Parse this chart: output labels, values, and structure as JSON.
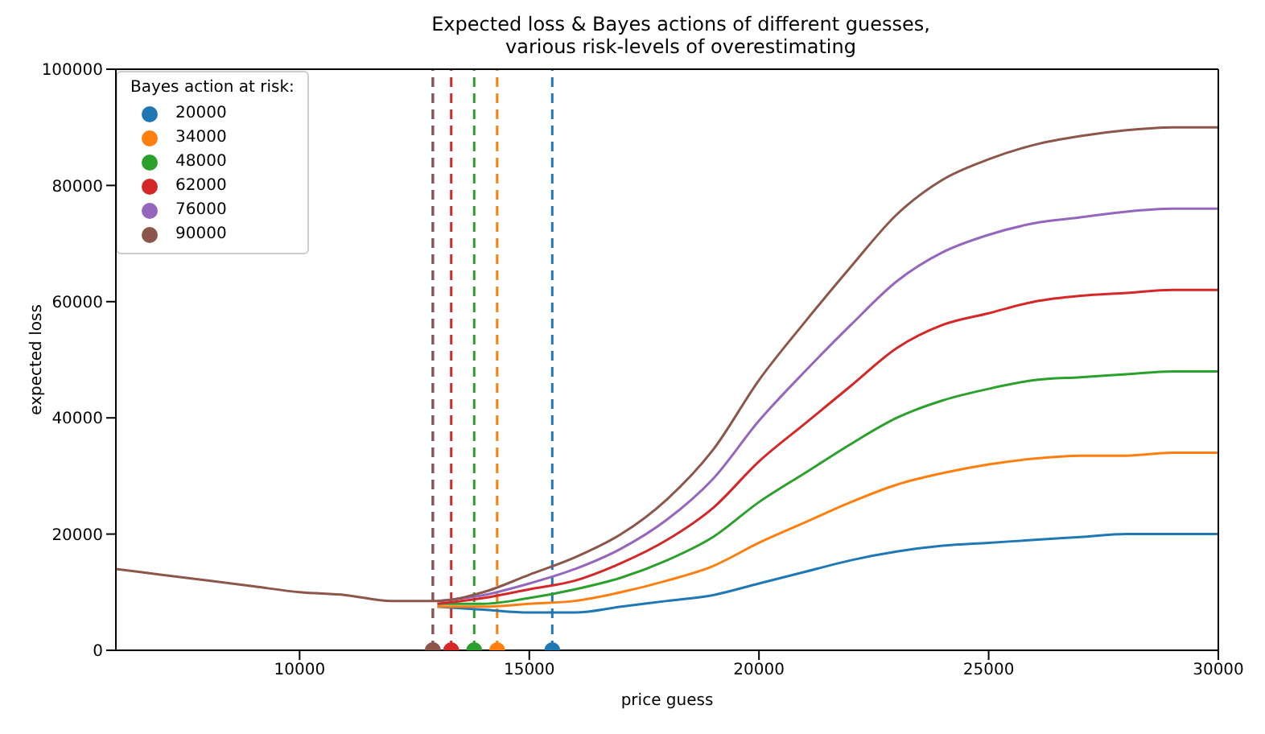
{
  "chart_data": {
    "type": "line",
    "title": "Expected loss & Bayes actions of different guesses,\nvarious risk-levels of overestimating",
    "xlabel": "price guess",
    "ylabel": "expected loss",
    "legend_title": "Bayes action at risk:",
    "legend": "top left",
    "xlim": [
      6000,
      30000
    ],
    "xticks": [
      10000,
      15000,
      20000,
      25000,
      30000
    ],
    "ylim": [
      0,
      100000
    ],
    "yticks": [
      0,
      20000,
      40000,
      60000,
      80000,
      100000
    ],
    "x": [
      6000,
      7000,
      8000,
      9000,
      10000,
      11000,
      12000,
      13000,
      14000,
      15000,
      16000,
      17000,
      18000,
      19000,
      20000,
      21000,
      22000,
      23000,
      24000,
      25000,
      26000,
      27000,
      28000,
      29000,
      30000
    ],
    "series": [
      {
        "color": "#1f77b4",
        "values": [
          null,
          null,
          null,
          null,
          null,
          null,
          null,
          7500,
          7000,
          6500,
          6500,
          7500,
          8500,
          9500,
          11500,
          13500,
          15500,
          17000,
          18000,
          18500,
          19000,
          19500,
          20000,
          20000,
          20000
        ]
      },
      {
        "color": "#ff7f0e",
        "values": [
          null,
          null,
          null,
          null,
          null,
          null,
          null,
          7500,
          7500,
          8000,
          8500,
          10000,
          12000,
          14500,
          18500,
          22000,
          25500,
          28500,
          30500,
          32000,
          33000,
          33500,
          33500,
          34000,
          34000
        ]
      },
      {
        "color": "#2ca02c",
        "values": [
          null,
          null,
          null,
          null,
          null,
          null,
          null,
          8000,
          8000,
          9000,
          10500,
          12500,
          15500,
          19500,
          25500,
          30500,
          35500,
          40000,
          43000,
          45000,
          46500,
          47000,
          47500,
          48000,
          48000
        ]
      },
      {
        "color": "#d62728",
        "values": [
          null,
          null,
          null,
          null,
          null,
          null,
          null,
          8000,
          9000,
          10500,
          12000,
          15000,
          19000,
          24500,
          32500,
          39000,
          45500,
          52000,
          56000,
          58000,
          60000,
          61000,
          61500,
          62000,
          62000
        ]
      },
      {
        "color": "#9467bd",
        "values": [
          null,
          null,
          null,
          null,
          null,
          null,
          null,
          8500,
          9500,
          11500,
          14000,
          17500,
          22500,
          29500,
          39500,
          48000,
          56000,
          63500,
          68500,
          71500,
          73500,
          74500,
          75500,
          76000,
          76000
        ]
      },
      {
        "color": "#8c564b",
        "values": [
          14000,
          13000,
          12000,
          11000,
          10000,
          9500,
          8500,
          8500,
          10000,
          13000,
          16000,
          20000,
          26000,
          34500,
          46500,
          56500,
          66000,
          75000,
          81000,
          84500,
          87000,
          88500,
          89500,
          90000,
          90000
        ]
      },
      {
        "type": "scatter",
        "name": "20000",
        "color": "#1f77b4",
        "marker": "circle",
        "x": [
          15500
        ],
        "values": [
          0
        ]
      },
      {
        "type": "scatter",
        "name": "34000",
        "color": "#ff7f0e",
        "marker": "circle",
        "x": [
          14300
        ],
        "values": [
          0
        ]
      },
      {
        "type": "scatter",
        "name": "48000",
        "color": "#2ca02c",
        "marker": "circle",
        "x": [
          13800
        ],
        "values": [
          0
        ]
      },
      {
        "type": "scatter",
        "name": "62000",
        "color": "#d62728",
        "marker": "circle",
        "x": [
          13300
        ],
        "values": [
          0
        ]
      },
      {
        "type": "scatter",
        "name": "76000",
        "color": "#9467bd",
        "marker": "circle",
        "x": [
          12900
        ],
        "values": [
          0
        ]
      },
      {
        "type": "scatter",
        "name": "90000",
        "color": "#8c564b",
        "marker": "circle",
        "x": [
          12900
        ],
        "values": [
          0
        ]
      }
    ],
    "ref_lines": [
      {
        "axis": "x",
        "value": 15500,
        "color": "#1f77b4",
        "line_style": "dashed"
      },
      {
        "axis": "x",
        "value": 14300,
        "color": "#ff7f0e",
        "line_style": "dashed"
      },
      {
        "axis": "x",
        "value": 13800,
        "color": "#2ca02c",
        "line_style": "dashed"
      },
      {
        "axis": "x",
        "value": 13300,
        "color": "#d62728",
        "line_style": "dashed"
      },
      {
        "axis": "x",
        "value": 12900,
        "color": "#9467bd",
        "line_style": "dashed"
      },
      {
        "axis": "x",
        "value": 12900,
        "color": "#8c564b",
        "line_style": "dashed"
      }
    ]
  }
}
